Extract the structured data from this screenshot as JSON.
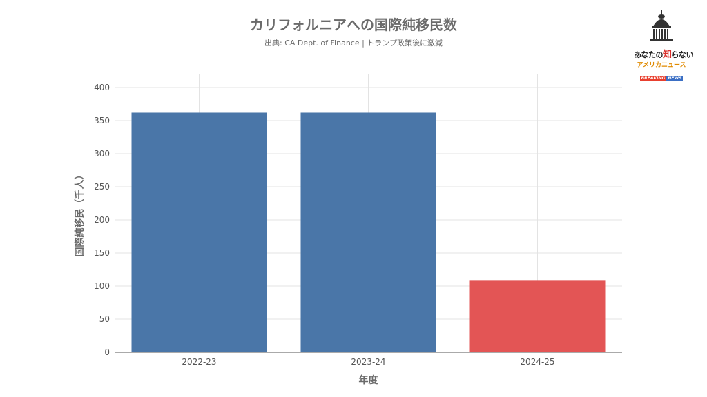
{
  "title": "カリフォルニアへの国際純移民数",
  "subtitle": "出典: CA Dept. of Finance | トランプ政策後に激減",
  "logo": {
    "line1a": "あなたの",
    "line1b": "知",
    "line1c": "らない",
    "line2": "アメリカニュース",
    "line3a": "BREAKING",
    "line3b": "NEWS"
  },
  "chart_data": {
    "type": "bar",
    "categories": [
      "2022-23",
      "2023-24",
      "2024-25"
    ],
    "values": [
      362,
      362,
      109
    ],
    "colors": [
      "#4a76a8",
      "#4a76a8",
      "#e35555"
    ],
    "xlabel": "年度",
    "ylabel": "国際純移民（千人）",
    "ylim": [
      0,
      400
    ],
    "yticks": [
      0,
      50,
      100,
      150,
      200,
      250,
      300,
      350,
      400
    ],
    "grid": true
  }
}
